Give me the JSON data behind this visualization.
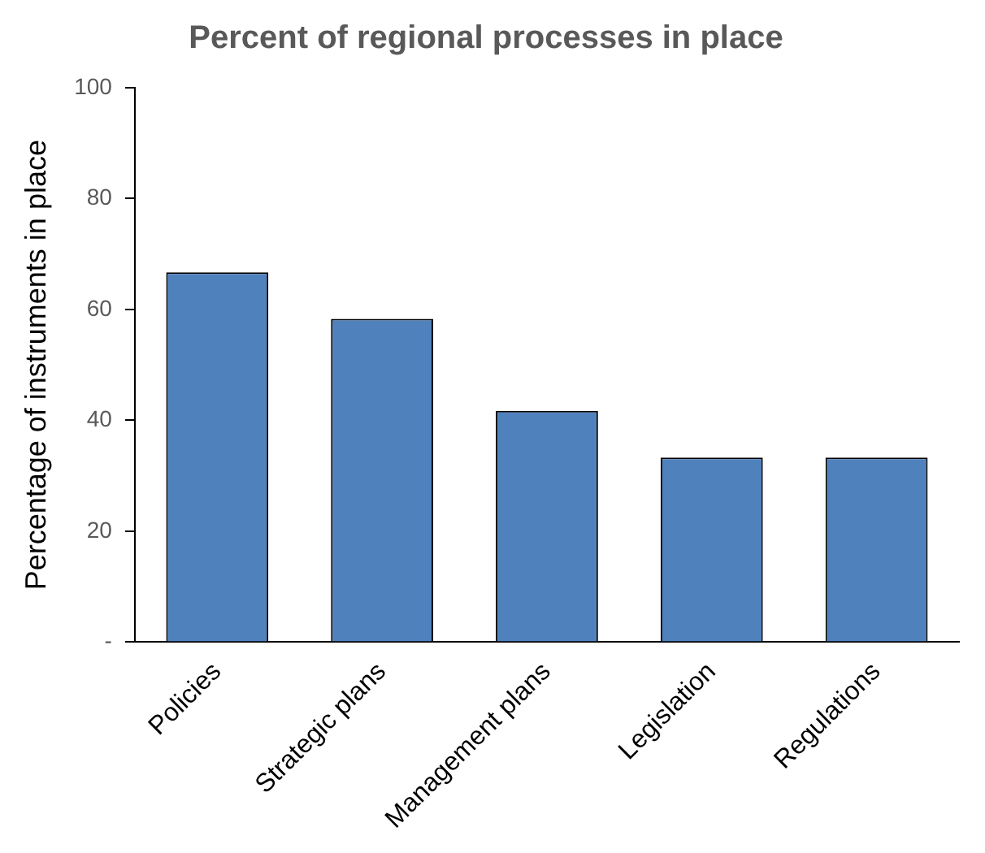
{
  "chart_data": {
    "type": "bar",
    "title": "Percent of regional processes in place",
    "ylabel": "Percentage of instruments in place",
    "categories": [
      "Policies",
      "Strategic plans",
      "Management plans",
      "Legislation",
      "Regulations"
    ],
    "values": [
      66.7,
      58.3,
      41.7,
      33.3,
      33.3
    ],
    "color": "#4f81bd",
    "ylim": [
      0,
      100
    ],
    "yticks": [
      {
        "value": 0,
        "label": "-"
      },
      20,
      40,
      60,
      80,
      100
    ],
    "grid": false,
    "legend": false
  }
}
